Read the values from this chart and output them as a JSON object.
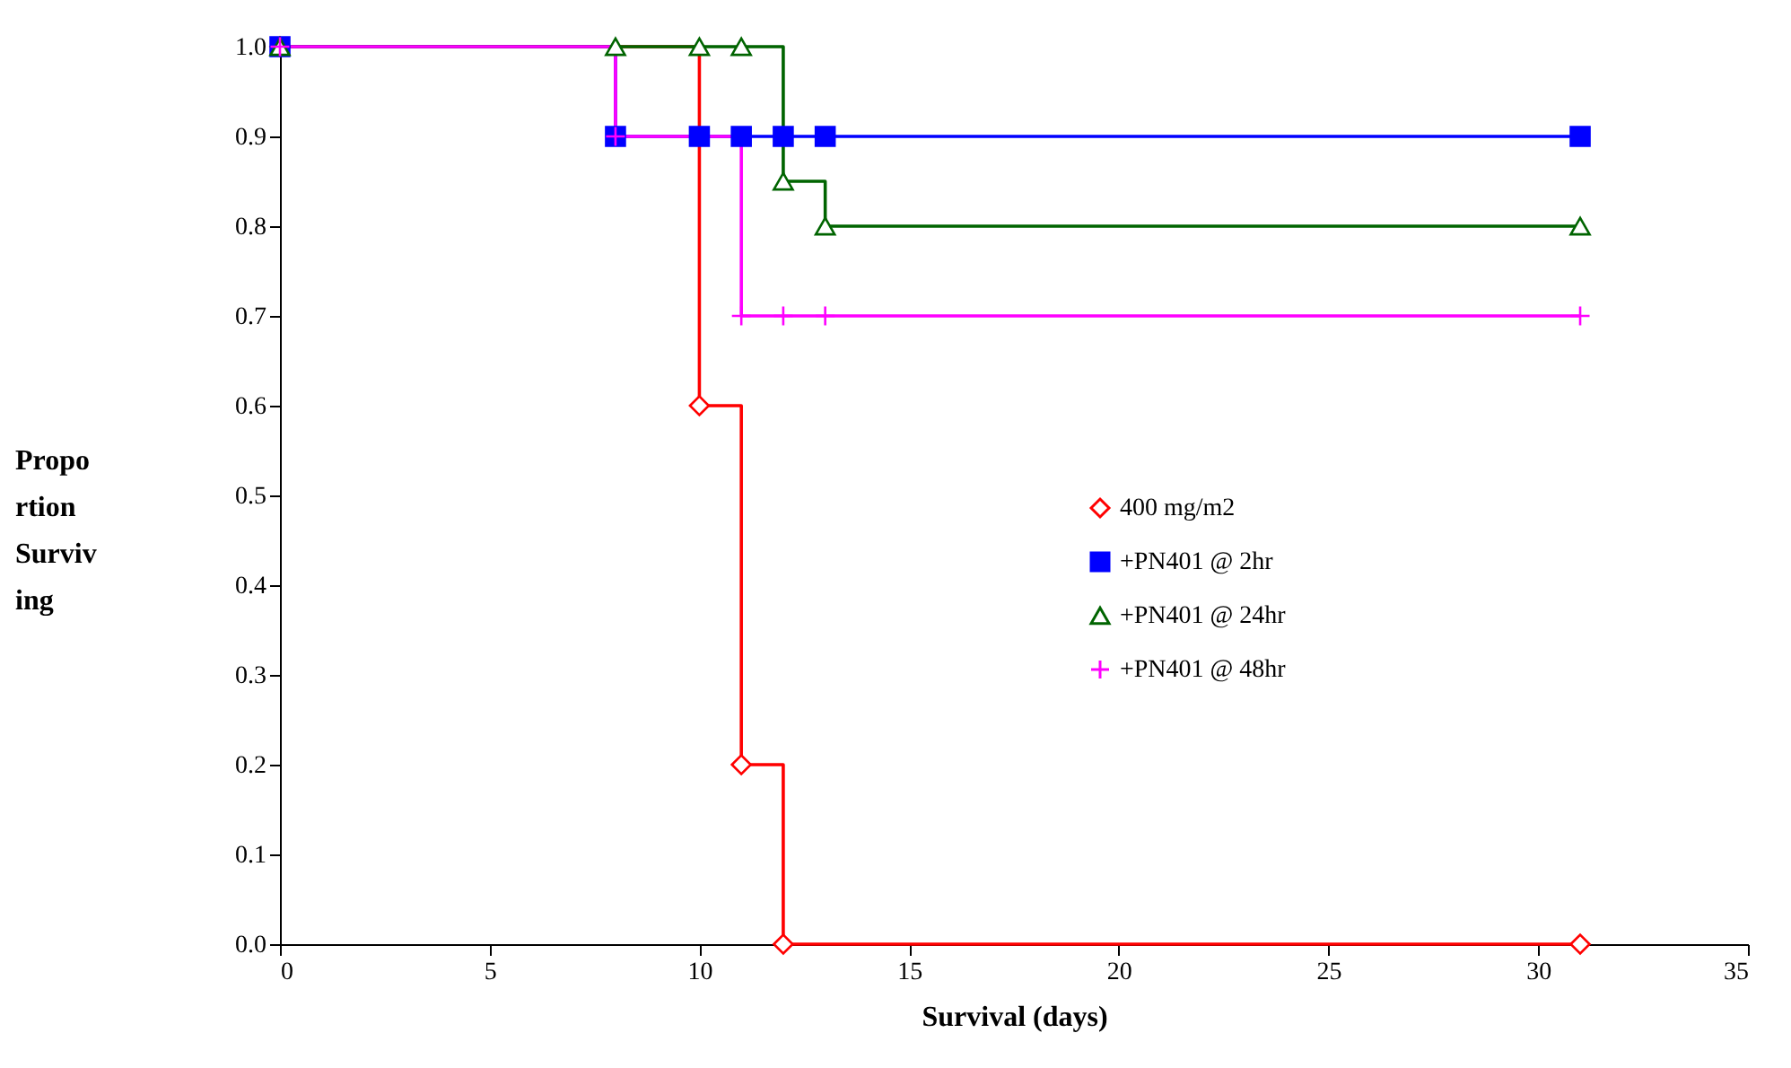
{
  "chart_data": {
    "type": "step",
    "xlabel": "Survival (days)",
    "ylabel": "Propo rtion Surviv ing",
    "xlim": [
      0,
      35
    ],
    "xticks": [
      0,
      5,
      10,
      15,
      20,
      25,
      30,
      35
    ],
    "ylim": [
      0,
      1
    ],
    "yticks": [
      {
        "value": 0,
        "label": "0.0"
      },
      {
        "value": 0.1,
        "label": "0.1"
      },
      {
        "value": 0.2,
        "label": "0.2"
      },
      {
        "value": 0.3,
        "label": "0.3"
      },
      {
        "value": 0.4,
        "label": "0.4"
      },
      {
        "value": 0.5,
        "label": "0.5"
      },
      {
        "value": 0.6,
        "label": "0.6"
      },
      {
        "value": 0.7,
        "label": "0.7"
      },
      {
        "value": 0.8,
        "label": "0.8"
      },
      {
        "value": 0.9,
        "label": "0.9"
      },
      {
        "value": 1,
        "label": "1.0"
      }
    ],
    "grid": false,
    "legend": "right",
    "series": [
      {
        "name": "400 mg/m2",
        "color": "#ff0000",
        "marker": "diamond",
        "x": [
          0,
          10,
          11,
          12,
          31
        ],
        "values": [
          1,
          0.6,
          0.2,
          0,
          0
        ]
      },
      {
        "name": "+PN401 @ 2hr",
        "color": "#0000ff",
        "marker": "square",
        "x": [
          0,
          8,
          10,
          11,
          12,
          13,
          31
        ],
        "values": [
          1,
          0.9,
          0.9,
          0.9,
          0.9,
          0.9,
          0.9
        ]
      },
      {
        "name": "+PN401 @ 24hr",
        "color": "#006400",
        "marker": "triangle",
        "x": [
          0,
          8,
          10,
          11,
          12,
          13,
          31
        ],
        "values": [
          1,
          1,
          1,
          1,
          0.85,
          0.8,
          0.8
        ]
      },
      {
        "name": "+PN401 @ 48hr",
        "color": "#ff00ff",
        "marker": "cross",
        "x": [
          0,
          8,
          11,
          12,
          13,
          31
        ],
        "values": [
          1,
          0.9,
          0.7,
          0.7,
          0.7,
          0.7
        ]
      }
    ]
  }
}
